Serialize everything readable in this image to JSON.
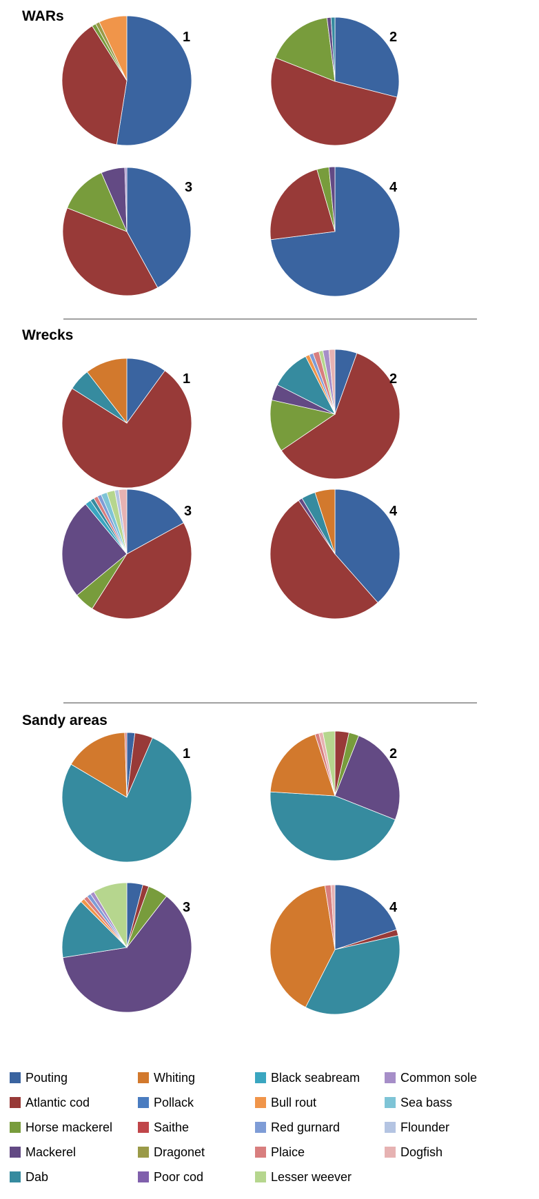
{
  "species": [
    {
      "name": "Pouting",
      "color": "#3a64a0"
    },
    {
      "name": "Atlantic cod",
      "color": "#983a38"
    },
    {
      "name": "Horse mackerel",
      "color": "#789c3c"
    },
    {
      "name": "Mackerel",
      "color": "#634a84"
    },
    {
      "name": "Dab",
      "color": "#368b9f"
    },
    {
      "name": "Whiting",
      "color": "#d2792d"
    },
    {
      "name": "Pollack",
      "color": "#4a7cc0"
    },
    {
      "name": "Saithe",
      "color": "#c0464a"
    },
    {
      "name": "Dragonet",
      "color": "#9a9a48"
    },
    {
      "name": "Poor cod",
      "color": "#8060ac"
    },
    {
      "name": "Black seabream",
      "color": "#3aa6c0"
    },
    {
      "name": "Bull rout",
      "color": "#f0954a"
    },
    {
      "name": "Red gurnard",
      "color": "#7e9cd6"
    },
    {
      "name": "Plaice",
      "color": "#d87e7e"
    },
    {
      "name": "Lesser weever",
      "color": "#b6d68e"
    },
    {
      "name": "Common sole",
      "color": "#a68ec8"
    },
    {
      "name": "Sea bass",
      "color": "#7ec4d6"
    },
    {
      "name": "Flounder",
      "color": "#b4c4e2"
    },
    {
      "name": "Dogfish",
      "color": "#e6b2b2"
    }
  ],
  "chart_data": [
    {
      "type": "pie",
      "section": "WARs",
      "label": "1",
      "slices": [
        {
          "species": "Pouting",
          "value": 52.5
        },
        {
          "species": "Atlantic cod",
          "value": 38.5
        },
        {
          "species": "Horse mackerel",
          "value": 1
        },
        {
          "species": "Dragonet",
          "value": 1
        },
        {
          "species": "Bull rout",
          "value": 7
        }
      ]
    },
    {
      "type": "pie",
      "section": "WARs",
      "label": "2",
      "slices": [
        {
          "species": "Pouting",
          "value": 29
        },
        {
          "species": "Atlantic cod",
          "value": 52
        },
        {
          "species": "Horse mackerel",
          "value": 17
        },
        {
          "species": "Mackerel",
          "value": 1
        },
        {
          "species": "Dab",
          "value": 1
        }
      ]
    },
    {
      "type": "pie",
      "section": "WARs",
      "label": "3",
      "slices": [
        {
          "species": "Pouting",
          "value": 42
        },
        {
          "species": "Atlantic cod",
          "value": 39
        },
        {
          "species": "Horse mackerel",
          "value": 12.5
        },
        {
          "species": "Mackerel",
          "value": 6
        },
        {
          "species": "Common sole",
          "value": 0.5
        }
      ]
    },
    {
      "type": "pie",
      "section": "WARs",
      "label": "4",
      "slices": [
        {
          "species": "Pouting",
          "value": 73
        },
        {
          "species": "Atlantic cod",
          "value": 22.5
        },
        {
          "species": "Horse mackerel",
          "value": 3
        },
        {
          "species": "Mackerel",
          "value": 1.5
        }
      ]
    },
    {
      "type": "pie",
      "section": "Wrecks",
      "label": "1",
      "slices": [
        {
          "species": "Pouting",
          "value": 10
        },
        {
          "species": "Atlantic cod",
          "value": 74
        },
        {
          "species": "Dab",
          "value": 5.5
        },
        {
          "species": "Whiting",
          "value": 10.5
        }
      ]
    },
    {
      "type": "pie",
      "section": "Wrecks",
      "label": "2",
      "slices": [
        {
          "species": "Pouting",
          "value": 5.5
        },
        {
          "species": "Atlantic cod",
          "value": 60
        },
        {
          "species": "Horse mackerel",
          "value": 13
        },
        {
          "species": "Mackerel",
          "value": 4
        },
        {
          "species": "Dab",
          "value": 10
        },
        {
          "species": "Bull rout",
          "value": 1
        },
        {
          "species": "Red gurnard",
          "value": 1
        },
        {
          "species": "Plaice",
          "value": 1.5
        },
        {
          "species": "Lesser weever",
          "value": 1
        },
        {
          "species": "Common sole",
          "value": 1.5
        },
        {
          "species": "Dogfish",
          "value": 1.5
        }
      ]
    },
    {
      "type": "pie",
      "section": "Wrecks",
      "label": "3",
      "slices": [
        {
          "species": "Pouting",
          "value": 17
        },
        {
          "species": "Atlantic cod",
          "value": 42
        },
        {
          "species": "Horse mackerel",
          "value": 5
        },
        {
          "species": "Mackerel",
          "value": 25
        },
        {
          "species": "Black seabream",
          "value": 1.5
        },
        {
          "species": "Dab",
          "value": 1
        },
        {
          "species": "Plaice",
          "value": 1
        },
        {
          "species": "Red gurnard",
          "value": 1
        },
        {
          "species": "Sea bass",
          "value": 1.5
        },
        {
          "species": "Lesser weever",
          "value": 2
        },
        {
          "species": "Flounder",
          "value": 1
        },
        {
          "species": "Dogfish",
          "value": 2
        }
      ]
    },
    {
      "type": "pie",
      "section": "Wrecks",
      "label": "4",
      "slices": [
        {
          "species": "Pouting",
          "value": 38.5
        },
        {
          "species": "Atlantic cod",
          "value": 52
        },
        {
          "species": "Mackerel",
          "value": 1
        },
        {
          "species": "Dab",
          "value": 3.5
        },
        {
          "species": "Whiting",
          "value": 5
        }
      ]
    },
    {
      "type": "pie",
      "section": "Sandy areas",
      "label": "1",
      "slices": [
        {
          "species": "Pouting",
          "value": 2
        },
        {
          "species": "Atlantic cod",
          "value": 4.5
        },
        {
          "species": "Dab",
          "value": 77
        },
        {
          "species": "Whiting",
          "value": 16
        },
        {
          "species": "Plaice",
          "value": 0.5
        }
      ]
    },
    {
      "type": "pie",
      "section": "Sandy areas",
      "label": "2",
      "slices": [
        {
          "species": "Atlantic cod",
          "value": 3.5
        },
        {
          "species": "Horse mackerel",
          "value": 2.5
        },
        {
          "species": "Mackerel",
          "value": 25
        },
        {
          "species": "Dab",
          "value": 45
        },
        {
          "species": "Whiting",
          "value": 19
        },
        {
          "species": "Plaice",
          "value": 1
        },
        {
          "species": "Dogfish",
          "value": 1
        },
        {
          "species": "Lesser weever",
          "value": 3
        }
      ]
    },
    {
      "type": "pie",
      "section": "Sandy areas",
      "label": "3",
      "slices": [
        {
          "species": "Pouting",
          "value": 4
        },
        {
          "species": "Atlantic cod",
          "value": 1.5
        },
        {
          "species": "Horse mackerel",
          "value": 5
        },
        {
          "species": "Mackerel",
          "value": 62
        },
        {
          "species": "Dab",
          "value": 15
        },
        {
          "species": "Bull rout",
          "value": 1
        },
        {
          "species": "Plaice",
          "value": 1
        },
        {
          "species": "Red gurnard",
          "value": 1
        },
        {
          "species": "Common sole",
          "value": 1
        },
        {
          "species": "Lesser weever",
          "value": 8.5
        }
      ]
    },
    {
      "type": "pie",
      "section": "Sandy areas",
      "label": "4",
      "slices": [
        {
          "species": "Pouting",
          "value": 20
        },
        {
          "species": "Atlantic cod",
          "value": 1.5
        },
        {
          "species": "Dab",
          "value": 36
        },
        {
          "species": "Whiting",
          "value": 40
        },
        {
          "species": "Plaice",
          "value": 1.5
        },
        {
          "species": "Dogfish",
          "value": 1
        }
      ]
    }
  ],
  "sections": [
    {
      "title": "WARs"
    },
    {
      "title": "Wrecks"
    },
    {
      "title": "Sandy areas"
    }
  ],
  "legend_order": [
    "Pouting",
    "Whiting",
    "Black seabream",
    "Common sole",
    "Atlantic cod",
    "Pollack",
    "Bull rout",
    "Sea bass",
    "Horse mackerel",
    "Saithe",
    "Red gurnard",
    "Flounder",
    "Mackerel",
    "Dragonet",
    "Plaice",
    "Dogfish",
    "Dab",
    "Poor cod",
    "Lesser weever"
  ]
}
